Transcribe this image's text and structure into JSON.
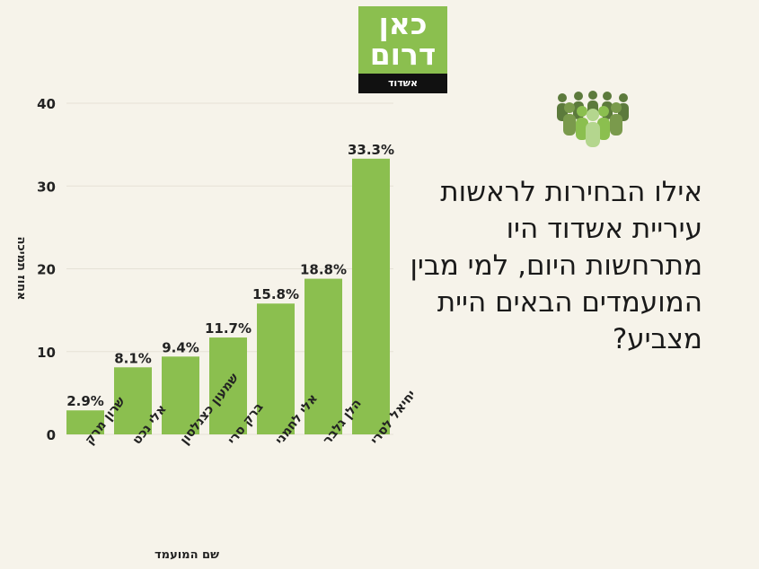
{
  "logo": {
    "line1": "כאן",
    "line2": "דרום",
    "sub": "אשדוד"
  },
  "icon": "people-group-icon",
  "question": "אילו הבחירות לראשות עיריית אשדוד היו מתרחשות היום, למי מבין המועמדים הבאים היית מצביע?",
  "colors": {
    "bar": "#8bbf4f",
    "background": "#f6f3ea",
    "gridline": "#e5e1d6",
    "text": "#222222"
  },
  "chart_data": {
    "type": "bar",
    "categories": [
      "שרון מרק",
      "אלי נכט",
      "שמעון כצנלסון",
      "ברק סרי",
      "אלי לחמני",
      "הלן גלבר",
      "יחיאל לסרי"
    ],
    "values": [
      2.9,
      8.1,
      9.4,
      11.7,
      15.8,
      18.8,
      33.3
    ],
    "data_labels": [
      "2.9%",
      "8.1%",
      "9.4%",
      "11.7%",
      "15.8%",
      "18.8%",
      "33.3%"
    ],
    "yticks": [
      0,
      10,
      20,
      30,
      40
    ],
    "ylim": [
      0,
      40
    ],
    "xlabel": "שם המועמד",
    "ylabel": "אחוז תמיכה",
    "grid": true
  }
}
